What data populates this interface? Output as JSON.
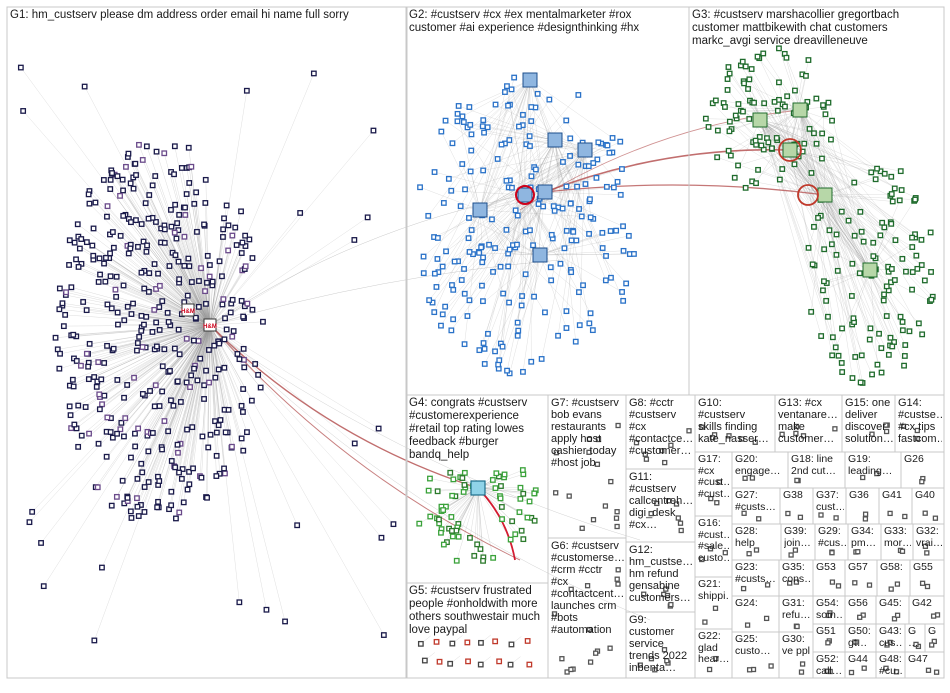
{
  "groups": [
    {
      "id": "G1",
      "label": "G1: hm_custserv please dm address order email hi name full sorry"
    },
    {
      "id": "G2",
      "label": "G2: #custserv #cx #ex mentalmarketer #rox\ncustomer #ai experience #designthinking #hx"
    },
    {
      "id": "G3",
      "label": "G3: #custserv marshacollier gregortbach\ncustomer mattbikewith chat customers\nmarkc_avgi service dreavilleneuve"
    },
    {
      "id": "G4",
      "label": "G4: congrats #custserv\n#customerexperience\n#retail top rating lowes\nfeedback #burger\nbandq_help"
    },
    {
      "id": "G5",
      "label": "G5: #custserv frustrated\npeople #onholdwith more\nothers southwestair much\nlove paypal"
    },
    {
      "id": "G6",
      "label": "G6: #custserv\n#customerse…\n#crm #cctr\n#cx\n#contactcent…\nlaunches crm\n#bots\n#automation"
    },
    {
      "id": "G7",
      "label": "G7: #custserv\nbob evans\nrestaurants\napply host\ncashier today\n#host job"
    },
    {
      "id": "G8",
      "label": "G8: #cctr\n#custserv\n#cx\n#contactce…\n#customer…"
    },
    {
      "id": "G9",
      "label": "G9:\ncustomer\nservice\ntrends 2022\ninbenta…"
    },
    {
      "id": "G10",
      "label": "G10:\n#custserv\nskills finding\nkate_nasser…"
    },
    {
      "id": "G11",
      "label": "G11:\n#custserv\ncallcentreh…\ndigi_desk\n#cx…"
    },
    {
      "id": "G12",
      "label": "G12:\nhm_custse…\nhm refund\ngensabine\ncustomers…"
    },
    {
      "id": "G13",
      "label": "G13: #cx\nventanare…\nmake\ncustomer…"
    },
    {
      "id": "G14",
      "label": "G14:\n#custse…\n#cx tips\nfastcom…"
    },
    {
      "id": "G15",
      "label": "G15: one\ndeliver\ndiscover\nsolution…"
    },
    {
      "id": "G16",
      "label": "G16:\n#cust…\n#sale…\ncusto…"
    },
    {
      "id": "G17",
      "label": "G17:\n#cx\n#cust…\n#cust…"
    },
    {
      "id": "G18",
      "label": "G18: line\n2nd cut…"
    },
    {
      "id": "G19",
      "label": "G19:\nleading…"
    },
    {
      "id": "G20",
      "label": "G20:\nengage…"
    },
    {
      "id": "G21",
      "label": "G21:\nshippi…"
    },
    {
      "id": "G22",
      "label": "G22:\nglad\nhear…"
    },
    {
      "id": "G23",
      "label": "G23:\n#custs…"
    },
    {
      "id": "G24",
      "label": "G24:"
    },
    {
      "id": "G25",
      "label": "G25:\ncusto…"
    },
    {
      "id": "G26",
      "label": "G26"
    },
    {
      "id": "G27",
      "label": "G27:\n#custs…"
    },
    {
      "id": "G28",
      "label": "G28:\nhelp"
    },
    {
      "id": "G29",
      "label": "G29:\n#cus…"
    },
    {
      "id": "G30",
      "label": "G30:\nve ppl"
    },
    {
      "id": "G31",
      "label": "G31:\nrefu…"
    },
    {
      "id": "G32",
      "label": "G32:\nvrai…"
    },
    {
      "id": "G33",
      "label": "G33:\nmor…"
    },
    {
      "id": "G34",
      "label": "G34:\npm…"
    },
    {
      "id": "G35",
      "label": "G35:\ncons…"
    },
    {
      "id": "G36",
      "label": "G36"
    },
    {
      "id": "G37",
      "label": "G37:\ncust…"
    },
    {
      "id": "G38",
      "label": "G38"
    },
    {
      "id": "G39",
      "label": "G39:\njoin…"
    },
    {
      "id": "G40",
      "label": "G40"
    },
    {
      "id": "G41",
      "label": "G41"
    },
    {
      "id": "G42",
      "label": "G42"
    },
    {
      "id": "G43",
      "label": "G43:\ncus…"
    },
    {
      "id": "G44",
      "label": "G44"
    },
    {
      "id": "G45",
      "label": "G45:"
    },
    {
      "id": "G46",
      "label": "G\n…"
    },
    {
      "id": "G47",
      "label": "G47"
    },
    {
      "id": "G48",
      "label": "G48:\n#cu…"
    },
    {
      "id": "G49",
      "label": "G"
    },
    {
      "id": "G50",
      "label": "G50:\ngt…"
    },
    {
      "id": "G51",
      "label": "G51"
    },
    {
      "id": "G52",
      "label": "G52:\ncall…"
    },
    {
      "id": "G53",
      "label": "G53"
    },
    {
      "id": "G54",
      "label": "G54:\nsom…"
    },
    {
      "id": "G55",
      "label": "G55"
    },
    {
      "id": "G56",
      "label": "G56"
    },
    {
      "id": "G57",
      "label": "G57"
    },
    {
      "id": "G58",
      "label": "G58:"
    }
  ],
  "hub_labels": {
    "hm_logo": "H&M"
  },
  "colors": {
    "background": "#ffffff",
    "panel_border": "#c8c8c8",
    "edge": "#9a9a9a",
    "edge_strong": "#b14a4a",
    "g1_node": "#1a1a4a",
    "g2_node": "#2a72c8",
    "g3_node": "#1f6b2c",
    "g4_node": "#3aa23a",
    "g5_node": "#c0392b",
    "small_node": "#555555"
  }
}
